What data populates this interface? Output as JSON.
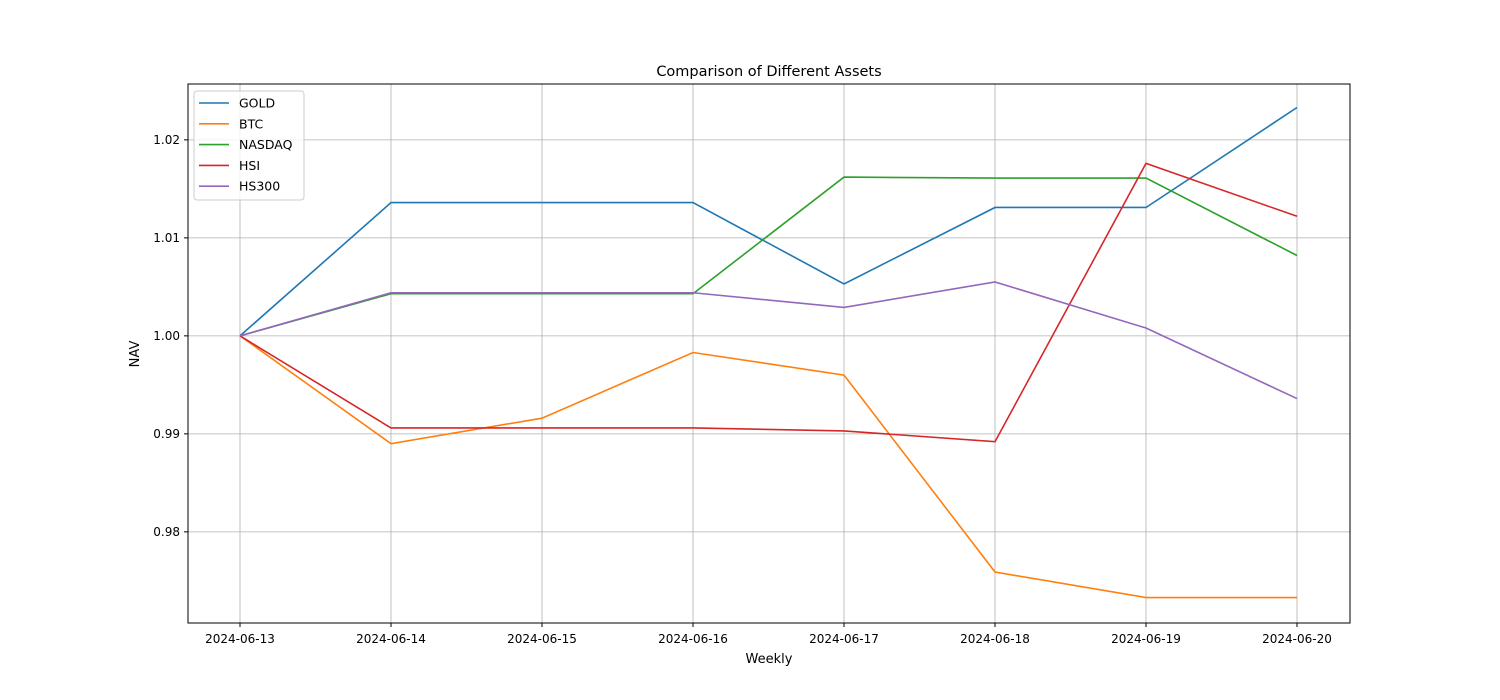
{
  "chart_data": {
    "type": "line",
    "title": "Comparison of Different Assets",
    "xlabel": "Weekly",
    "ylabel": "NAV",
    "x": [
      "2024-06-13",
      "2024-06-14",
      "2024-06-15",
      "2024-06-16",
      "2024-06-17",
      "2024-06-18",
      "2024-06-19",
      "2024-06-20"
    ],
    "ylim": [
      0.9707,
      1.0257
    ],
    "yticks": [
      0.98,
      0.99,
      1.0,
      1.01,
      1.02
    ],
    "ytick_labels": [
      "0.98",
      "0.99",
      "1.00",
      "1.01",
      "1.02"
    ],
    "grid": true,
    "legend_position": "top-left",
    "series": [
      {
        "name": "GOLD",
        "color": "#1f77b4",
        "values": [
          1.0,
          1.0136,
          1.0136,
          1.0136,
          1.0053,
          1.0131,
          1.0131,
          1.0233
        ]
      },
      {
        "name": "BTC",
        "color": "#ff7f0e",
        "values": [
          1.0,
          0.989,
          0.9916,
          0.9983,
          0.996,
          0.9759,
          0.9733,
          0.9733
        ]
      },
      {
        "name": "NASDAQ",
        "color": "#2ca02c",
        "values": [
          1.0,
          1.0043,
          1.0043,
          1.0043,
          1.0162,
          1.0161,
          1.0161,
          1.0082
        ]
      },
      {
        "name": "HSI",
        "color": "#d62728",
        "values": [
          1.0,
          0.9906,
          0.9906,
          0.9906,
          0.9903,
          0.9892,
          1.0176,
          1.0122
        ]
      },
      {
        "name": "HS300",
        "color": "#9467bd",
        "values": [
          1.0,
          1.0044,
          1.0044,
          1.0044,
          1.0029,
          1.0055,
          1.0008,
          0.9936
        ]
      }
    ]
  }
}
